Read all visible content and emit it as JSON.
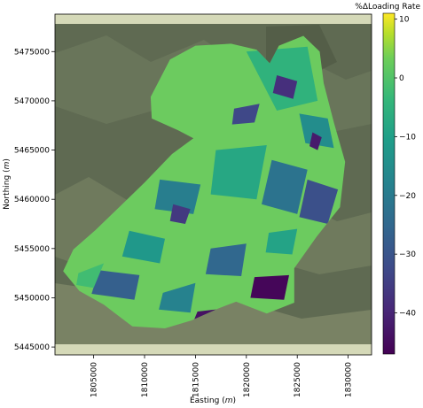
{
  "chart_data": {
    "type": "heatmap",
    "xlabel": "Easting",
    "xlabel_unit": "m",
    "ylabel": "Northing",
    "ylabel_unit": "m",
    "x_ticks": [
      "1805000",
      "1810000",
      "1815000",
      "1820000",
      "1825000",
      "1830000"
    ],
    "x_tick_values": [
      1805000,
      1810000,
      1815000,
      1820000,
      1825000,
      1830000
    ],
    "y_ticks": [
      "5475000",
      "5470000",
      "5465000",
      "5460000",
      "5455000",
      "5450000",
      "5445000"
    ],
    "y_tick_values": [
      5475000,
      5470000,
      5465000,
      5460000,
      5455000,
      5450000,
      5445000
    ],
    "xlim": [
      1801200,
      1832300
    ],
    "ylim": [
      5444200,
      5478800
    ],
    "colorbar": {
      "title": "%ΔLoading Rate",
      "colormap": "viridis",
      "range": [
        -47,
        11
      ],
      "ticks": [
        "10",
        "0",
        "−10",
        "−20",
        "−30",
        "−40"
      ],
      "tick_values": [
        10,
        0,
        -10,
        -20,
        -30,
        -40
      ]
    },
    "colors": {
      "background_terrain": "#5f6a52",
      "band": "#d5d9b8",
      "dominant_value_color": "#6ccb5f"
    },
    "catchment_boundary": [
      [
        1810600,
        5470400
      ],
      [
        1812500,
        5474200
      ],
      [
        1815000,
        5475600
      ],
      [
        1818500,
        5475800
      ],
      [
        1821000,
        5475200
      ],
      [
        1822300,
        5473800
      ],
      [
        1823200,
        5475600
      ],
      [
        1825600,
        5476600
      ],
      [
        1827200,
        5475000
      ],
      [
        1827600,
        5471800
      ],
      [
        1828600,
        5467800
      ],
      [
        1829700,
        5463800
      ],
      [
        1829200,
        5459200
      ],
      [
        1826900,
        5456200
      ],
      [
        1824700,
        5453000
      ],
      [
        1824700,
        5449500
      ],
      [
        1822000,
        5448400
      ],
      [
        1819000,
        5449600
      ],
      [
        1817200,
        5448900
      ],
      [
        1814600,
        5447700
      ],
      [
        1812000,
        5446900
      ],
      [
        1808800,
        5447100
      ],
      [
        1806000,
        5449300
      ],
      [
        1803600,
        5450700
      ],
      [
        1802000,
        5452700
      ],
      [
        1803000,
        5454900
      ],
      [
        1805200,
        5456900
      ],
      [
        1807600,
        5459300
      ],
      [
        1810000,
        5461700
      ],
      [
        1812700,
        5464600
      ],
      [
        1814800,
        5466200
      ],
      [
        1813300,
        5467000
      ],
      [
        1810700,
        5468200
      ]
    ],
    "zones": [
      {
        "value": -5,
        "points": [
          [
            1820000,
            5475000
          ],
          [
            1826000,
            5475500
          ],
          [
            1827000,
            5470000
          ],
          [
            1823000,
            5469000
          ]
        ]
      },
      {
        "value": -38,
        "points": [
          [
            1823000,
            5472600
          ],
          [
            1825000,
            5472000
          ],
          [
            1824600,
            5470200
          ],
          [
            1822600,
            5470800
          ]
        ]
      },
      {
        "value": -33,
        "points": [
          [
            1818800,
            5469200
          ],
          [
            1821300,
            5469700
          ],
          [
            1820800,
            5467800
          ],
          [
            1818600,
            5467600
          ]
        ]
      },
      {
        "value": -15,
        "points": [
          [
            1825200,
            5468700
          ],
          [
            1828000,
            5468200
          ],
          [
            1828600,
            5465200
          ],
          [
            1825800,
            5465700
          ]
        ]
      },
      {
        "value": -42,
        "points": [
          [
            1826500,
            5466800
          ],
          [
            1827400,
            5466300
          ],
          [
            1827000,
            5465000
          ],
          [
            1826200,
            5465400
          ]
        ]
      },
      {
        "value": -8,
        "points": [
          [
            1817000,
            5465000
          ],
          [
            1822000,
            5465500
          ],
          [
            1821000,
            5460000
          ],
          [
            1816500,
            5460500
          ]
        ]
      },
      {
        "value": -22,
        "points": [
          [
            1822500,
            5464000
          ],
          [
            1826000,
            5463000
          ],
          [
            1825000,
            5458500
          ],
          [
            1821500,
            5459500
          ]
        ]
      },
      {
        "value": -31,
        "points": [
          [
            1826000,
            5462000
          ],
          [
            1829000,
            5461000
          ],
          [
            1828000,
            5457500
          ],
          [
            1825200,
            5458200
          ]
        ]
      },
      {
        "value": -19,
        "points": [
          [
            1811500,
            5462000
          ],
          [
            1815500,
            5461500
          ],
          [
            1814800,
            5458500
          ],
          [
            1811000,
            5459000
          ]
        ]
      },
      {
        "value": -36,
        "points": [
          [
            1812800,
            5459500
          ],
          [
            1814500,
            5459000
          ],
          [
            1814000,
            5457500
          ],
          [
            1812500,
            5457800
          ]
        ]
      },
      {
        "value": -12,
        "points": [
          [
            1808500,
            5456800
          ],
          [
            1812000,
            5456000
          ],
          [
            1811500,
            5453500
          ],
          [
            1807800,
            5454200
          ]
        ]
      },
      {
        "value": -27,
        "points": [
          [
            1805500,
            5452800
          ],
          [
            1809500,
            5452300
          ],
          [
            1809000,
            5449800
          ],
          [
            1804800,
            5450400
          ]
        ]
      },
      {
        "value": -44,
        "points": [
          [
            1815200,
            5448600
          ],
          [
            1818600,
            5449000
          ],
          [
            1818000,
            5447400
          ],
          [
            1814800,
            5447600
          ]
        ]
      },
      {
        "value": -46,
        "points": [
          [
            1820800,
            5452100
          ],
          [
            1824200,
            5452300
          ],
          [
            1823700,
            5449800
          ],
          [
            1820400,
            5450000
          ]
        ]
      },
      {
        "value": -25,
        "points": [
          [
            1816500,
            5455000
          ],
          [
            1820000,
            5455500
          ],
          [
            1819500,
            5452200
          ],
          [
            1816000,
            5452400
          ]
        ]
      },
      {
        "value": -18,
        "points": [
          [
            1811800,
            5450500
          ],
          [
            1815000,
            5451500
          ],
          [
            1814500,
            5448500
          ],
          [
            1811400,
            5448800
          ]
        ]
      },
      {
        "value": -2,
        "points": [
          [
            1803500,
            5452500
          ],
          [
            1806000,
            5453500
          ],
          [
            1805000,
            5451000
          ],
          [
            1803300,
            5451300
          ]
        ]
      },
      {
        "value": -9,
        "points": [
          [
            1822200,
            5456600
          ],
          [
            1825000,
            5457000
          ],
          [
            1824500,
            5454400
          ],
          [
            1821900,
            5454600
          ]
        ]
      }
    ]
  }
}
